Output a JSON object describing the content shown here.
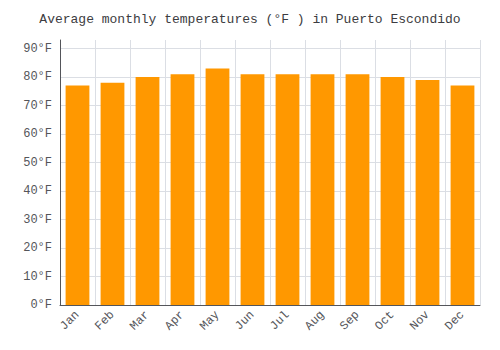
{
  "chart_data": {
    "type": "bar",
    "title": "Average monthly temperatures (°F ) in Puerto Escondido",
    "categories": [
      "Jan",
      "Feb",
      "Mar",
      "Apr",
      "May",
      "Jun",
      "Jul",
      "Aug",
      "Sep",
      "Oct",
      "Nov",
      "Dec"
    ],
    "values": [
      77,
      78,
      80,
      81,
      83,
      81,
      81,
      81,
      81,
      80,
      79,
      77
    ],
    "color": "#FF9800",
    "ylim": [
      0,
      93
    ],
    "yticks": [
      {
        "value": 0,
        "label": "0°F"
      },
      {
        "value": 10,
        "label": "10°F"
      },
      {
        "value": 20,
        "label": "20°F"
      },
      {
        "value": 30,
        "label": "30°F"
      },
      {
        "value": 40,
        "label": "40°F"
      },
      {
        "value": 50,
        "label": "50°F"
      },
      {
        "value": 60,
        "label": "60°F"
      },
      {
        "value": 70,
        "label": "70°F"
      },
      {
        "value": 80,
        "label": "80°F"
      },
      {
        "value": 90,
        "label": "90°F"
      }
    ],
    "grid": true
  }
}
